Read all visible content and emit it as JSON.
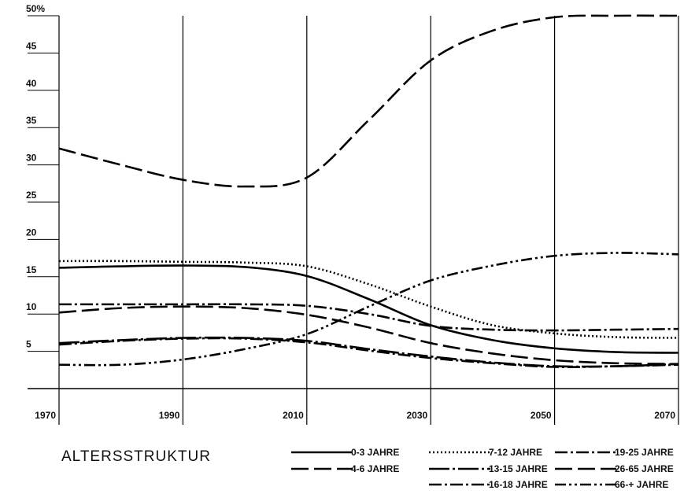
{
  "chart_data": {
    "type": "line",
    "title": "ALTERSSTRUKTUR",
    "x": [
      1970,
      1980,
      1990,
      2000,
      2010,
      2020,
      2030,
      2040,
      2050,
      2060,
      2070
    ],
    "xlim": [
      1970,
      2070
    ],
    "xticks": [
      1970,
      1990,
      2010,
      2030,
      2050,
      2070
    ],
    "ylim": [
      0,
      50
    ],
    "yticks": [
      5,
      10,
      15,
      20,
      25,
      30,
      35,
      40,
      45,
      {
        "value": 50,
        "label": "50%"
      }
    ],
    "grid": true,
    "series": [
      {
        "name": "0-3 JAHRE",
        "color": "#000000",
        "dash": "solid",
        "values": [
          16.2,
          16.4,
          16.5,
          16.3,
          15.1,
          12,
          8.5,
          6.5,
          5.4,
          4.9,
          4.8
        ]
      },
      {
        "name": "4-6 JAHRE",
        "color": "#000000",
        "dash": "dashed",
        "values": [
          10.2,
          10.8,
          11.0,
          10.8,
          9.9,
          8.2,
          6.1,
          4.7,
          3.8,
          3.4,
          3.3
        ]
      },
      {
        "name": "7-12 JAHRE",
        "color": "#000000",
        "dash": "dotted",
        "values": [
          17.1,
          17.1,
          17.0,
          16.9,
          16.4,
          14,
          11,
          8.5,
          7.4,
          6.9,
          6.8
        ]
      },
      {
        "name": "13-15 JAHRE",
        "color": "#000000",
        "dash": "longdashdot",
        "values": [
          6.1,
          6.5,
          6.8,
          6.8,
          6.4,
          5.3,
          4.3,
          3.5,
          3.0,
          3.0,
          3.3
        ]
      },
      {
        "name": "16-18 JAHRE",
        "color": "#000000",
        "dash": "dashdot",
        "values": [
          5.9,
          6.4,
          6.7,
          6.7,
          6.2,
          5.1,
          4.1,
          3.4,
          2.9,
          3.0,
          3.2
        ]
      },
      {
        "name": "19-25 JAHRE",
        "color": "#000000",
        "dash": "dashdot",
        "values": [
          11.3,
          11.3,
          11.3,
          11.3,
          11.1,
          10,
          8.4,
          7.9,
          7.8,
          7.9,
          8.0
        ]
      },
      {
        "name": "26-65 JAHRE",
        "color": "#000000",
        "dash": "dashed",
        "values": [
          32.2,
          30,
          28,
          27.1,
          28.3,
          36,
          44,
          48,
          49.8,
          50,
          50
        ]
      },
      {
        "name": "66-+ JAHRE",
        "color": "#000000",
        "dash": "dashdotdot",
        "values": [
          3.2,
          3.2,
          3.9,
          5.3,
          7.3,
          11,
          14.5,
          16.5,
          17.8,
          18.2,
          18.0
        ]
      }
    ]
  }
}
